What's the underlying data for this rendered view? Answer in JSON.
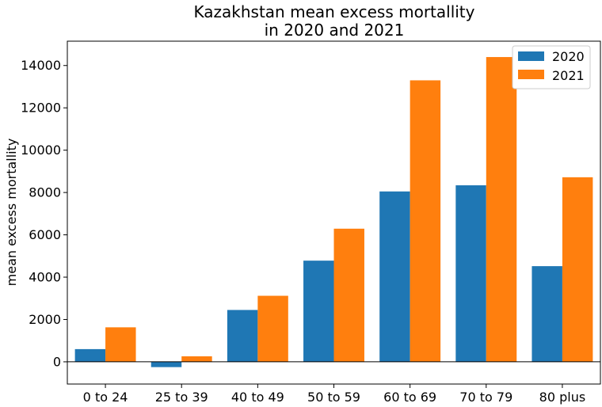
{
  "chart_data": {
    "type": "bar",
    "title": [
      "Kazakhstan mean excess mortallity",
      "in 2020 and 2021"
    ],
    "xlabel": "",
    "ylabel": "mean excess mortallity",
    "categories": [
      "0 to 24",
      "25 to 39",
      "40 to 49",
      "50 to 59",
      "60 to 69",
      "70 to 79",
      "80 plus"
    ],
    "series": [
      {
        "name": "2020",
        "color": "#1f77b4",
        "values": [
          600,
          -250,
          2450,
          4780,
          8050,
          8340,
          4520
        ]
      },
      {
        "name": "2021",
        "color": "#ff7f0e",
        "values": [
          1630,
          260,
          3120,
          6290,
          13300,
          14400,
          8720
        ]
      }
    ],
    "ylim": [
      -1050,
      15150
    ],
    "yticks": [
      0,
      2000,
      4000,
      6000,
      8000,
      10000,
      12000,
      14000
    ],
    "zero_line": true,
    "grid": false,
    "legend_position": "top-right"
  }
}
